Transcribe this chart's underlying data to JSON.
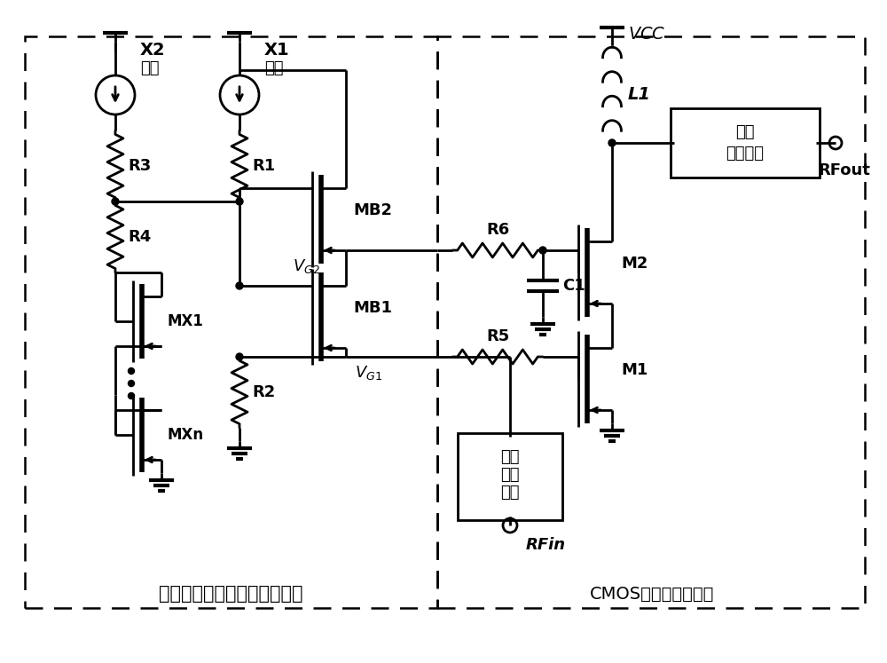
{
  "bg_color": "#ffffff",
  "line_color": "#000000",
  "left_box_label": "温度及工艺偏差补偿偏置电路",
  "right_box_label": "CMOS共源共栅放大级",
  "components": {
    "x2_label": "X2\n支路",
    "x1_label": "X1\n支路",
    "r1": "R1",
    "r2": "R2",
    "r3": "R3",
    "r4": "R4",
    "r5": "R5",
    "r6": "R6",
    "mb1": "MB1",
    "mb2": "MB2",
    "mx1": "MX1",
    "mxn": "MXn",
    "m1": "M1",
    "m2": "M2",
    "l1": "L1",
    "c1": "C1",
    "vcc": "VCC",
    "vg1": "V_{G1}",
    "vg2": "V_{G2}",
    "rfin": "RFin",
    "rfout": "RFout",
    "output_net": [
      "输出",
      "匹配网络"
    ],
    "input_net": [
      "输入",
      "匹配",
      "网络"
    ]
  }
}
